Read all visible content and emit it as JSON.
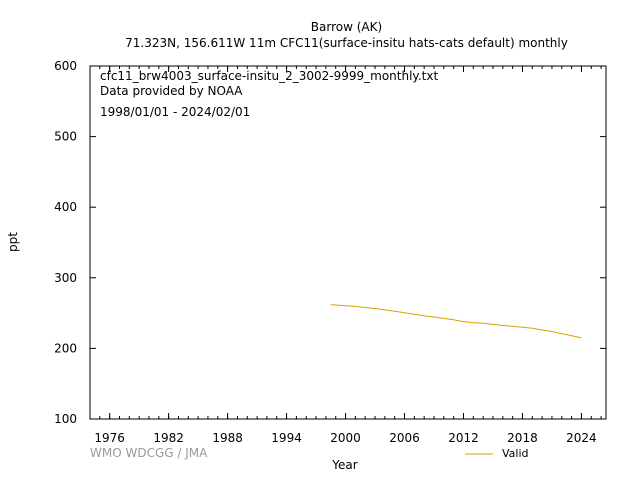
{
  "header": {
    "title_line1": "Barrow (AK)",
    "title_line2": "71.323N, 156.611W 11m    CFC11(surface-insitu hats-cats default) monthly"
  },
  "info": {
    "file": "cfc11_brw4003_surface-insitu_2_3002-9999_monthly.txt",
    "provider": "Data provided by NOAA",
    "period": "1998/01/01 - 2024/02/01"
  },
  "footer": {
    "credit": "WMO WDCGG / JMA"
  },
  "chart_data": {
    "type": "line",
    "xlabel": "Year",
    "ylabel": "ppt",
    "xlim": [
      1974,
      2026.5
    ],
    "ylim": [
      100,
      600
    ],
    "x_ticks": [
      1976,
      1982,
      1988,
      1994,
      2000,
      2006,
      2012,
      2018,
      2024
    ],
    "y_ticks": [
      100,
      200,
      300,
      400,
      500,
      600
    ],
    "grid": false,
    "legend_position": "bottom-right",
    "series": [
      {
        "name": "Valid",
        "color": "#e0a000",
        "x": [
          1998.5,
          1999,
          2000,
          2001,
          2002,
          2003,
          2004,
          2005,
          2006,
          2007,
          2008,
          2009,
          2010,
          2011,
          2012,
          2013,
          2014,
          2015,
          2016,
          2017,
          2018,
          2019,
          2020,
          2021,
          2022,
          2023,
          2024
        ],
        "y": [
          262,
          261.5,
          260.5,
          259.5,
          258,
          256.5,
          254.5,
          252.5,
          250.5,
          248.5,
          246,
          244.5,
          242.5,
          240.5,
          238,
          236.5,
          235.5,
          234,
          232.5,
          231.5,
          230,
          228.5,
          226,
          224,
          221,
          218,
          215
        ]
      }
    ]
  }
}
